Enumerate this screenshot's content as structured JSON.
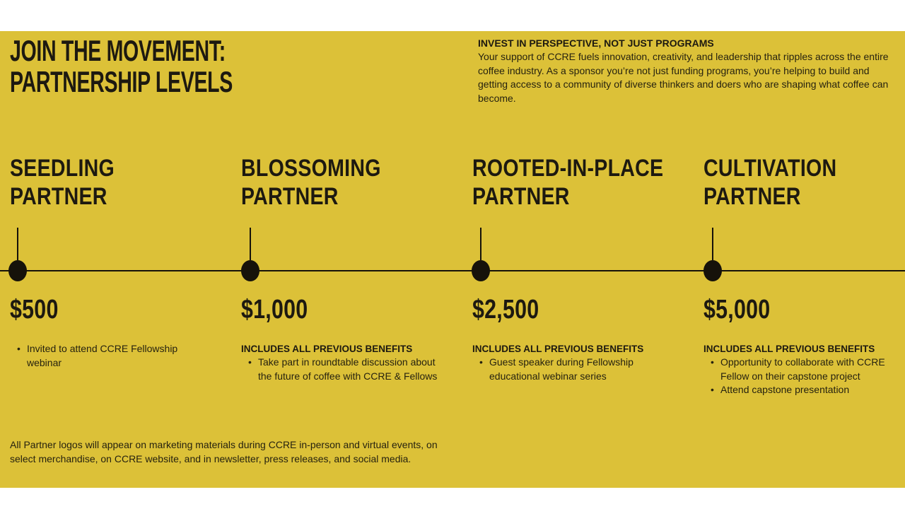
{
  "page": {
    "band_color": "#dcc138",
    "heading_color": "#1d1910",
    "body_color": "#26220f"
  },
  "title": {
    "line1": "JOIN THE MOVEMENT:",
    "line2": "PARTNERSHIP LEVELS"
  },
  "intro": {
    "heading": "INVEST IN PERSPECTIVE, NOT JUST PROGRAMS",
    "body": "Your support of CCRE fuels innovation, creativity, and leadership that ripples across the entire coffee industry. As a sponsor you’re not just funding programs, you’re helping to build and getting access to a community of diverse thinkers and doers who are shaping what coffee can become."
  },
  "tiers": [
    {
      "name_line1": "SEEDLING",
      "name_line2": "PARTNER",
      "price": "$500",
      "includes_note": "",
      "benefits": [
        "Invited to attend CCRE Fellowship webinar"
      ]
    },
    {
      "name_line1": "BLOSSOMING",
      "name_line2": "PARTNER",
      "price": "$1,000",
      "includes_note": "INCLUDES ALL PREVIOUS BENEFITS",
      "benefits": [
        "Take part in roundtable discussion about the future of coffee with CCRE & Fellows"
      ]
    },
    {
      "name_line1": "ROOTED-IN-PLACE",
      "name_line2": "PARTNER",
      "price": "$2,500",
      "includes_note": "INCLUDES ALL PREVIOUS BENEFITS",
      "benefits": [
        "Guest speaker during Fellowship educational webinar series"
      ]
    },
    {
      "name_line1": "CULTIVATION",
      "name_line2": "PARTNER",
      "price": "$5,000",
      "includes_note": "INCLUDES ALL PREVIOUS BENEFITS",
      "benefits": [
        "Opportunity to collaborate with CCRE Fellow on their capstone project",
        "Attend capstone presentation"
      ]
    }
  ],
  "footer": {
    "note": "All Partner logos will appear on marketing materials during CCRE in-person and virtual events, on select merchandise, on CCRE website, and in newsletter, press releases, and social media."
  }
}
